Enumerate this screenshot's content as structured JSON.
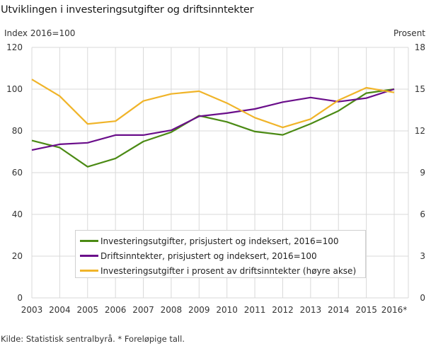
{
  "title": "Utviklingen i investeringsutgifter og driftsinntekter",
  "source": "Kilde: Statistisk sentralbyrå. * Foreløpige tall.",
  "chart_data": {
    "type": "line",
    "title": "Utviklingen i investeringsutgifter og driftsinntekter",
    "xlabel": "",
    "ylabel": "Index 2016=100",
    "ylabel_right": "Prosent",
    "x": [
      "2003",
      "2004",
      "2005",
      "2006",
      "2007",
      "2008",
      "2009",
      "2010",
      "2011",
      "2012",
      "2013",
      "2014",
      "2015",
      "2016*"
    ],
    "ylim": [
      0,
      120
    ],
    "ylim_right": [
      0,
      18
    ],
    "yticks": [
      0,
      20,
      40,
      60,
      80,
      100,
      120
    ],
    "yticks_right": [
      0,
      3,
      6,
      9,
      12,
      15,
      18
    ],
    "grid": true,
    "legend_position": "inside-bottom-center",
    "series": [
      {
        "name": "Investeringsutgifter, prisjustert og indeksert, 2016=100",
        "axis": "left",
        "color": "#4b8a14",
        "values": [
          75.4,
          72.0,
          62.8,
          66.8,
          74.9,
          79.4,
          87.3,
          84.3,
          79.7,
          78.1,
          83.4,
          89.6,
          98.1,
          100.0
        ]
      },
      {
        "name": "Driftsinntekter, prisjustert og indeksert, 2016=100",
        "axis": "left",
        "color": "#6a0e8a",
        "values": [
          70.8,
          73.6,
          74.3,
          78.0,
          78.0,
          80.3,
          87.0,
          88.5,
          90.5,
          93.8,
          96.0,
          94.0,
          95.7,
          100.0
        ]
      },
      {
        "name": "Investeringsutgifter i prosent av driftsinntekter (høyre akse)",
        "axis": "right",
        "color": "#f0b429",
        "values": [
          15.7,
          14.5,
          12.5,
          12.7,
          14.15,
          14.66,
          14.85,
          14.0,
          12.95,
          12.25,
          12.85,
          14.2,
          15.1,
          14.76
        ]
      }
    ]
  },
  "legend": {
    "items": [
      {
        "label": "Investeringsutgifter, prisjustert og indeksert, 2016=100",
        "color": "#4b8a14"
      },
      {
        "label": "Driftsinntekter, prisjustert og indeksert, 2016=100",
        "color": "#6a0e8a"
      },
      {
        "label": "Investeringsutgifter i prosent av driftsinntekter (høyre akse)",
        "color": "#f0b429"
      }
    ]
  }
}
